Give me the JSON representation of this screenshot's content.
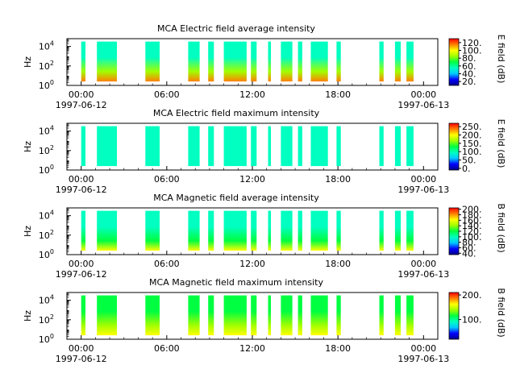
{
  "colors": {
    "colormap": [
      "#00008b",
      "#0000ff",
      "#00c8ff",
      "#00ffc0",
      "#00ff40",
      "#a0ff00",
      "#ffff00",
      "#ff8000",
      "#ff0000"
    ]
  },
  "chart_data": [
    {
      "type": "heatmap",
      "title": "MCA  Electric field average intensity",
      "ylabel": "Hz",
      "colorbar_label": "E field (dB)",
      "colorbar_ticks": [
        "20.",
        "40.",
        "60.",
        "80.",
        "100.",
        "120."
      ],
      "colorbar_range": [
        10,
        130
      ],
      "yticks": [
        {
          "base": "10",
          "exp": "0"
        },
        {
          "base": "10",
          "exp": "2"
        },
        {
          "base": "10",
          "exp": "4"
        }
      ],
      "xticks": [
        {
          "time": "00:00",
          "date": "1997-06-12"
        },
        {
          "time": "06:00",
          "date": ""
        },
        {
          "time": "12:00",
          "date": ""
        },
        {
          "time": "18:00",
          "date": ""
        },
        {
          "time": "00:00",
          "date": "1997-06-13"
        }
      ],
      "xlim_hours": [
        -1,
        25
      ],
      "ylim_log10_hz": [
        0,
        4.8
      ],
      "data_log10_hz_range": [
        0.4,
        4.5
      ],
      "low_freq_value": 110,
      "high_freq_value": 60,
      "intervals_hours": [
        [
          0.0,
          0.3
        ],
        [
          1.1,
          2.5
        ],
        [
          4.5,
          5.5
        ],
        [
          7.5,
          8.3
        ],
        [
          8.9,
          9.3
        ],
        [
          10.0,
          11.6
        ],
        [
          11.9,
          12.3
        ],
        [
          13.1,
          13.3
        ],
        [
          14.0,
          14.8
        ],
        [
          15.2,
          15.5
        ],
        [
          16.1,
          17.3
        ],
        [
          17.9,
          18.2
        ],
        [
          20.9,
          21.2
        ],
        [
          22.0,
          22.4
        ],
        [
          22.8,
          23.3
        ]
      ]
    },
    {
      "type": "heatmap",
      "title": "MCA  Electric field maximum intensity",
      "ylabel": "Hz",
      "colorbar_label": "E field (dB)",
      "colorbar_ticks": [
        "0.",
        "50.",
        "100.",
        "150.",
        "200.",
        "250."
      ],
      "colorbar_range": [
        -10,
        270
      ],
      "yticks": [
        {
          "base": "10",
          "exp": "0"
        },
        {
          "base": "10",
          "exp": "2"
        },
        {
          "base": "10",
          "exp": "4"
        }
      ],
      "xticks": [
        {
          "time": "00:00",
          "date": "1997-06-12"
        },
        {
          "time": "06:00",
          "date": ""
        },
        {
          "time": "12:00",
          "date": ""
        },
        {
          "time": "18:00",
          "date": ""
        },
        {
          "time": "00:00",
          "date": "1997-06-13"
        }
      ],
      "xlim_hours": [
        -1,
        25
      ],
      "ylim_log10_hz": [
        0,
        4.8
      ],
      "data_log10_hz_range": [
        0.4,
        4.5
      ],
      "low_freq_value": 110,
      "high_freq_value": 95,
      "intervals_hours": [
        [
          0.0,
          0.3
        ],
        [
          1.1,
          2.5
        ],
        [
          4.5,
          5.5
        ],
        [
          7.5,
          8.3
        ],
        [
          8.9,
          9.3
        ],
        [
          10.0,
          11.6
        ],
        [
          11.9,
          12.3
        ],
        [
          13.1,
          13.3
        ],
        [
          14.0,
          14.8
        ],
        [
          15.2,
          15.5
        ],
        [
          16.1,
          17.3
        ],
        [
          17.9,
          18.2
        ],
        [
          20.9,
          21.2
        ],
        [
          22.0,
          22.4
        ],
        [
          22.8,
          23.3
        ]
      ]
    },
    {
      "type": "heatmap",
      "title": "MCA  Magnetic field average intensity",
      "ylabel": "Hz",
      "colorbar_label": "B field (dB)",
      "colorbar_ticks": [
        "40.",
        "60.",
        "80.",
        "100.",
        "120.",
        "140.",
        "160.",
        "180.",
        "200."
      ],
      "colorbar_range": [
        35,
        205
      ],
      "yticks": [
        {
          "base": "10",
          "exp": "0"
        },
        {
          "base": "10",
          "exp": "2"
        },
        {
          "base": "10",
          "exp": "4"
        }
      ],
      "xticks": [
        {
          "time": "00:00",
          "date": "1997-06-12"
        },
        {
          "time": "06:00",
          "date": ""
        },
        {
          "time": "12:00",
          "date": ""
        },
        {
          "time": "18:00",
          "date": ""
        },
        {
          "time": "00:00",
          "date": "1997-06-13"
        }
      ],
      "xlim_hours": [
        -1,
        25
      ],
      "ylim_log10_hz": [
        0,
        4.8
      ],
      "data_log10_hz_range": [
        0.4,
        4.5
      ],
      "low_freq_value": 160,
      "high_freq_value": 95,
      "intervals_hours": [
        [
          0.0,
          0.3
        ],
        [
          1.1,
          2.5
        ],
        [
          4.5,
          5.5
        ],
        [
          7.5,
          8.3
        ],
        [
          8.9,
          9.3
        ],
        [
          10.0,
          11.6
        ],
        [
          11.9,
          12.3
        ],
        [
          13.1,
          13.3
        ],
        [
          14.0,
          14.8
        ],
        [
          15.2,
          15.5
        ],
        [
          16.1,
          17.3
        ],
        [
          17.9,
          18.2
        ],
        [
          20.9,
          21.2
        ],
        [
          22.0,
          22.4
        ],
        [
          22.8,
          23.3
        ]
      ]
    },
    {
      "type": "heatmap",
      "title": "MCA  Magnetic field maximum intensity",
      "ylabel": "Hz",
      "colorbar_label": "B field (dB)",
      "colorbar_ticks": [
        "100.",
        "200."
      ],
      "colorbar_range": [
        20,
        210
      ],
      "yticks": [
        {
          "base": "10",
          "exp": "0"
        },
        {
          "base": "10",
          "exp": "2"
        },
        {
          "base": "10",
          "exp": "4"
        }
      ],
      "xticks": [
        {
          "time": "00:00",
          "date": "1997-06-12"
        },
        {
          "time": "06:00",
          "date": ""
        },
        {
          "time": "12:00",
          "date": ""
        },
        {
          "time": "18:00",
          "date": ""
        },
        {
          "time": "00:00",
          "date": "1997-06-13"
        }
      ],
      "xlim_hours": [
        -1,
        25
      ],
      "ylim_log10_hz": [
        0,
        4.8
      ],
      "data_log10_hz_range": [
        0.4,
        4.5
      ],
      "low_freq_value": 160,
      "high_freq_value": 120,
      "intervals_hours": [
        [
          0.0,
          0.3
        ],
        [
          1.1,
          2.5
        ],
        [
          4.5,
          5.5
        ],
        [
          7.5,
          8.3
        ],
        [
          8.9,
          9.3
        ],
        [
          10.0,
          11.6
        ],
        [
          11.9,
          12.3
        ],
        [
          13.1,
          13.3
        ],
        [
          14.0,
          14.8
        ],
        [
          15.2,
          15.5
        ],
        [
          16.1,
          17.3
        ],
        [
          17.9,
          18.2
        ],
        [
          20.9,
          21.2
        ],
        [
          22.0,
          22.4
        ],
        [
          22.8,
          23.3
        ]
      ]
    }
  ]
}
